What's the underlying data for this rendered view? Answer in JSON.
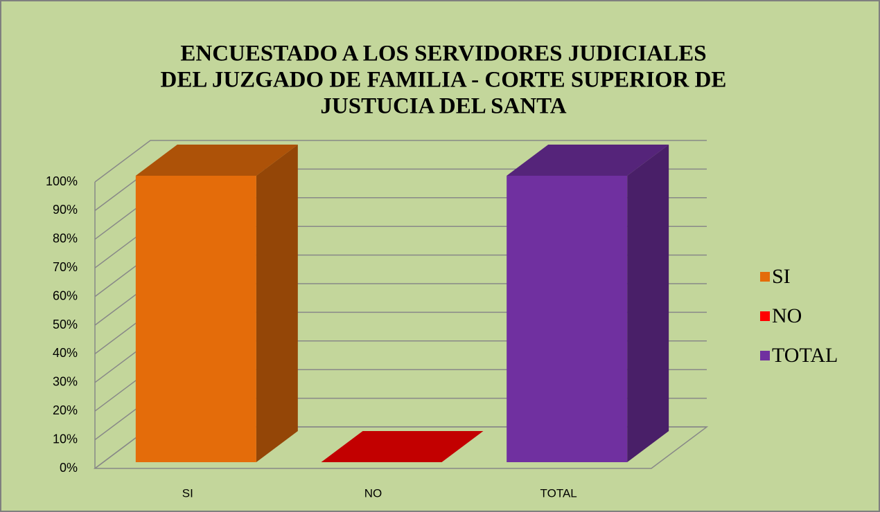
{
  "chart_data": {
    "type": "bar3d",
    "title": [
      "ENCUESTADO A LOS SERVIDORES JUDICIALES",
      "DEL JUZGADO DE FAMILIA - CORTE SUPERIOR DE",
      "JUSTUCIA DEL SANTA"
    ],
    "categories": [
      "SI",
      "NO",
      "TOTAL"
    ],
    "values": [
      100,
      0,
      100
    ],
    "colors": [
      "#e46c0a",
      "#ff0000",
      "#7030a0"
    ],
    "ylim": [
      0,
      100
    ],
    "yticks": [
      {
        "value": 0,
        "label": "0%"
      },
      {
        "value": 10,
        "label": "10%"
      },
      {
        "value": 20,
        "label": "20%"
      },
      {
        "value": 30,
        "label": "30%"
      },
      {
        "value": 40,
        "label": "40%"
      },
      {
        "value": 50,
        "label": "50%"
      },
      {
        "value": 60,
        "label": "60%"
      },
      {
        "value": 70,
        "label": "70%"
      },
      {
        "value": 80,
        "label": "80%"
      },
      {
        "value": 90,
        "label": "90%"
      },
      {
        "value": 100,
        "label": "100%"
      }
    ],
    "grid": true,
    "legend": "right"
  }
}
